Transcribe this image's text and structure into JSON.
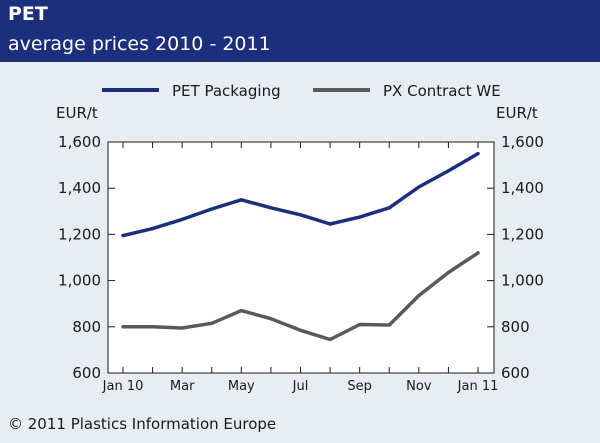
{
  "header": {
    "title": "PET",
    "subtitle": "average prices 2010 - 2011"
  },
  "footer": {
    "copyright": "© 2011 Plastics Information Europe"
  },
  "colors": {
    "header_bg": "#1c2f7c",
    "plot_bg": "#ffffff",
    "page_bg": "#e8ecf3",
    "pet_packaging": "#1c2f7c",
    "px_contract": "#5a5a5a"
  },
  "chart_data": {
    "type": "line",
    "title": "PET",
    "subtitle": "average prices 2010 - 2011",
    "ylabel_left": "EUR/t",
    "ylabel_right": "EUR/t",
    "x_tick_labels": [
      "Jan 10",
      "Mar",
      "May",
      "Jul",
      "Sep",
      "Nov",
      "Jan 11"
    ],
    "y_ticks": [
      600,
      800,
      1000,
      1200,
      1400,
      1600
    ],
    "y_tick_labels": [
      "600",
      "800",
      "1,000",
      "1,200",
      "1,400",
      "1,600"
    ],
    "ylim": [
      600,
      1600
    ],
    "x_count": 13,
    "x": [
      "Jan 10",
      "Feb 10",
      "Mar 10",
      "Apr 10",
      "May 10",
      "Jun 10",
      "Jul 10",
      "Aug 10",
      "Sep 10",
      "Oct 10",
      "Nov 10",
      "Dec 10",
      "Jan 11"
    ],
    "grid": false,
    "legend_position": "top",
    "series": [
      {
        "name": "PET Packaging",
        "color": "#1c2f7c",
        "values": [
          1195,
          1225,
          1265,
          1310,
          1350,
          1315,
          1285,
          1245,
          1275,
          1315,
          1405,
          1475,
          1550
        ]
      },
      {
        "name": "PX Contract WE",
        "color": "#5a5a5a",
        "values": [
          800,
          800,
          795,
          815,
          870,
          835,
          785,
          745,
          810,
          808,
          935,
          1035,
          1120
        ]
      }
    ]
  }
}
